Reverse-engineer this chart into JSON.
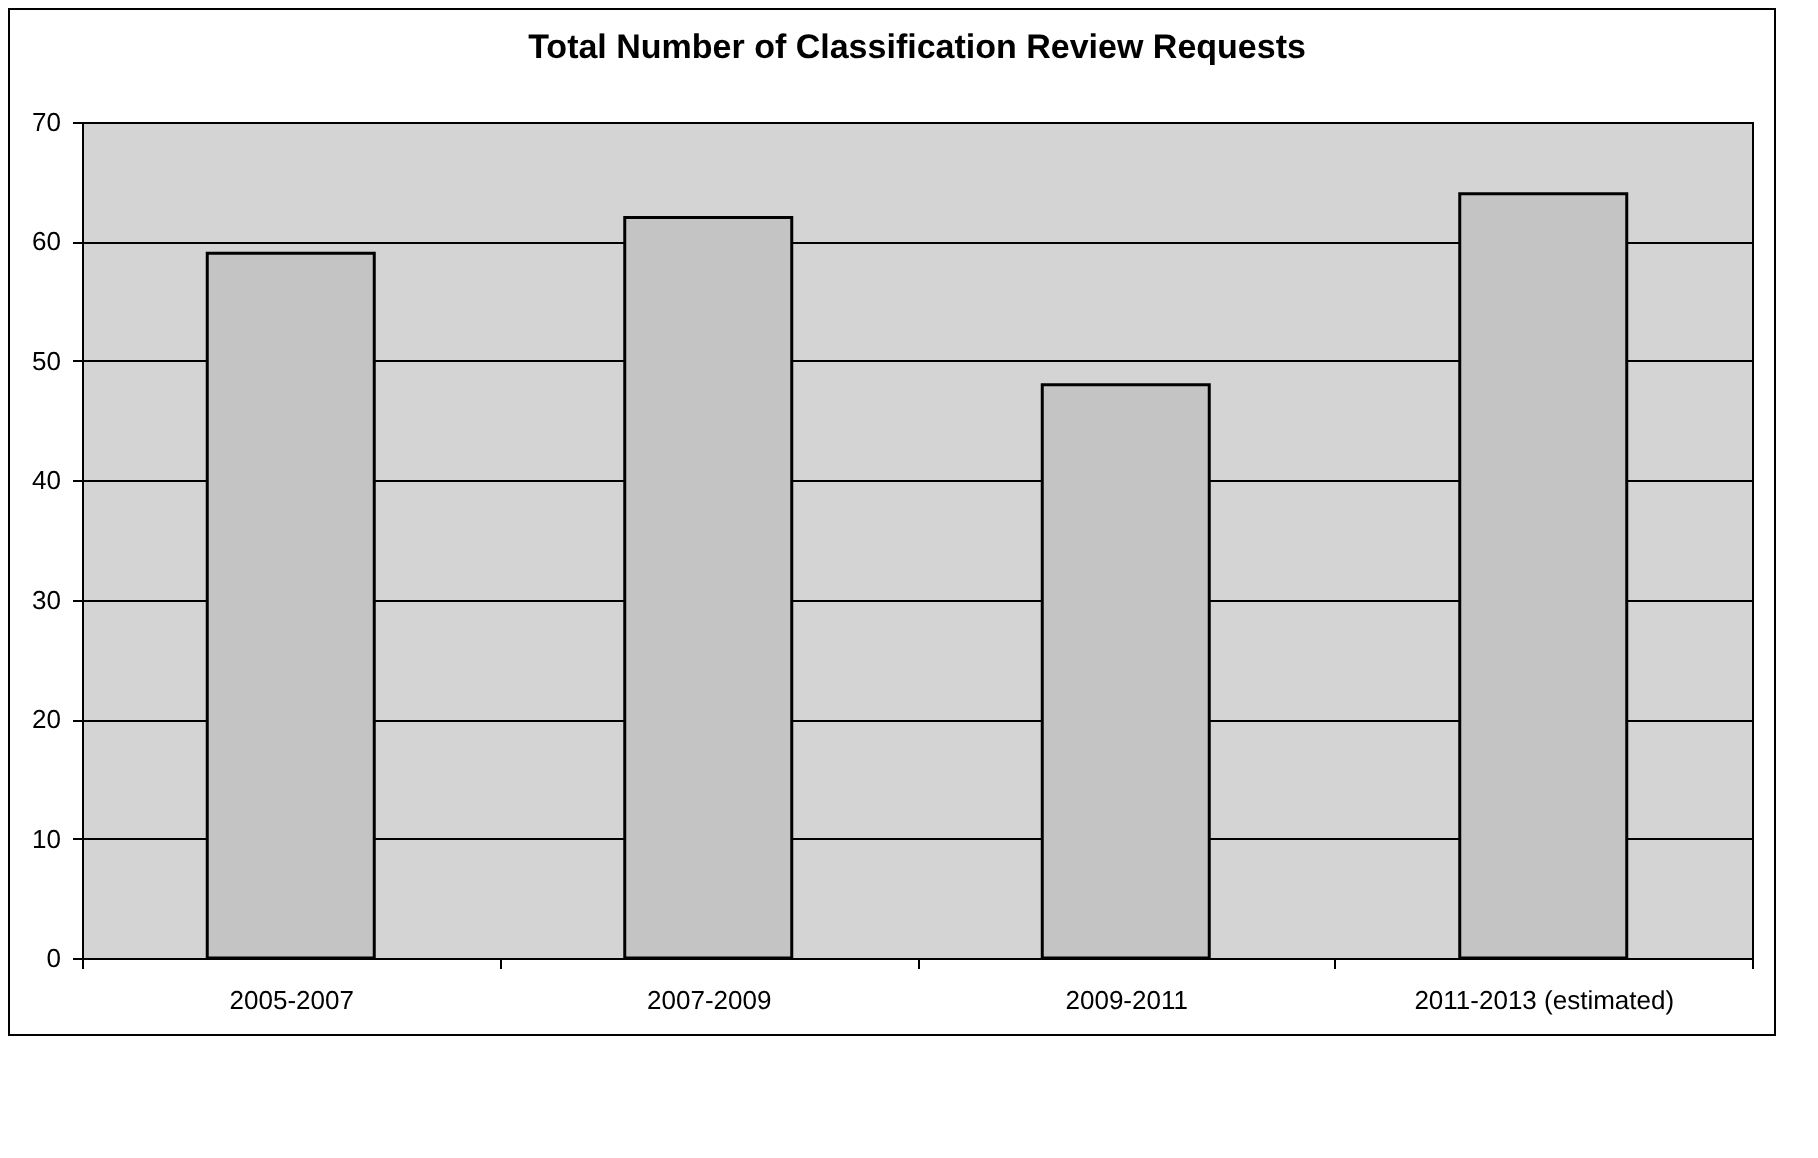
{
  "chart_data": {
    "type": "bar",
    "title": "Total Number of Classification Review Requests",
    "categories": [
      "2005-2007",
      "2007-2009",
      "2009-2011",
      "2011-2013 (estimated)"
    ],
    "values": [
      59,
      62,
      48,
      64
    ],
    "color": "#c4c4c4",
    "ylim": [
      0,
      70
    ],
    "yticks": [
      0,
      10,
      20,
      30,
      40,
      50,
      60,
      70
    ],
    "grid": "y"
  }
}
